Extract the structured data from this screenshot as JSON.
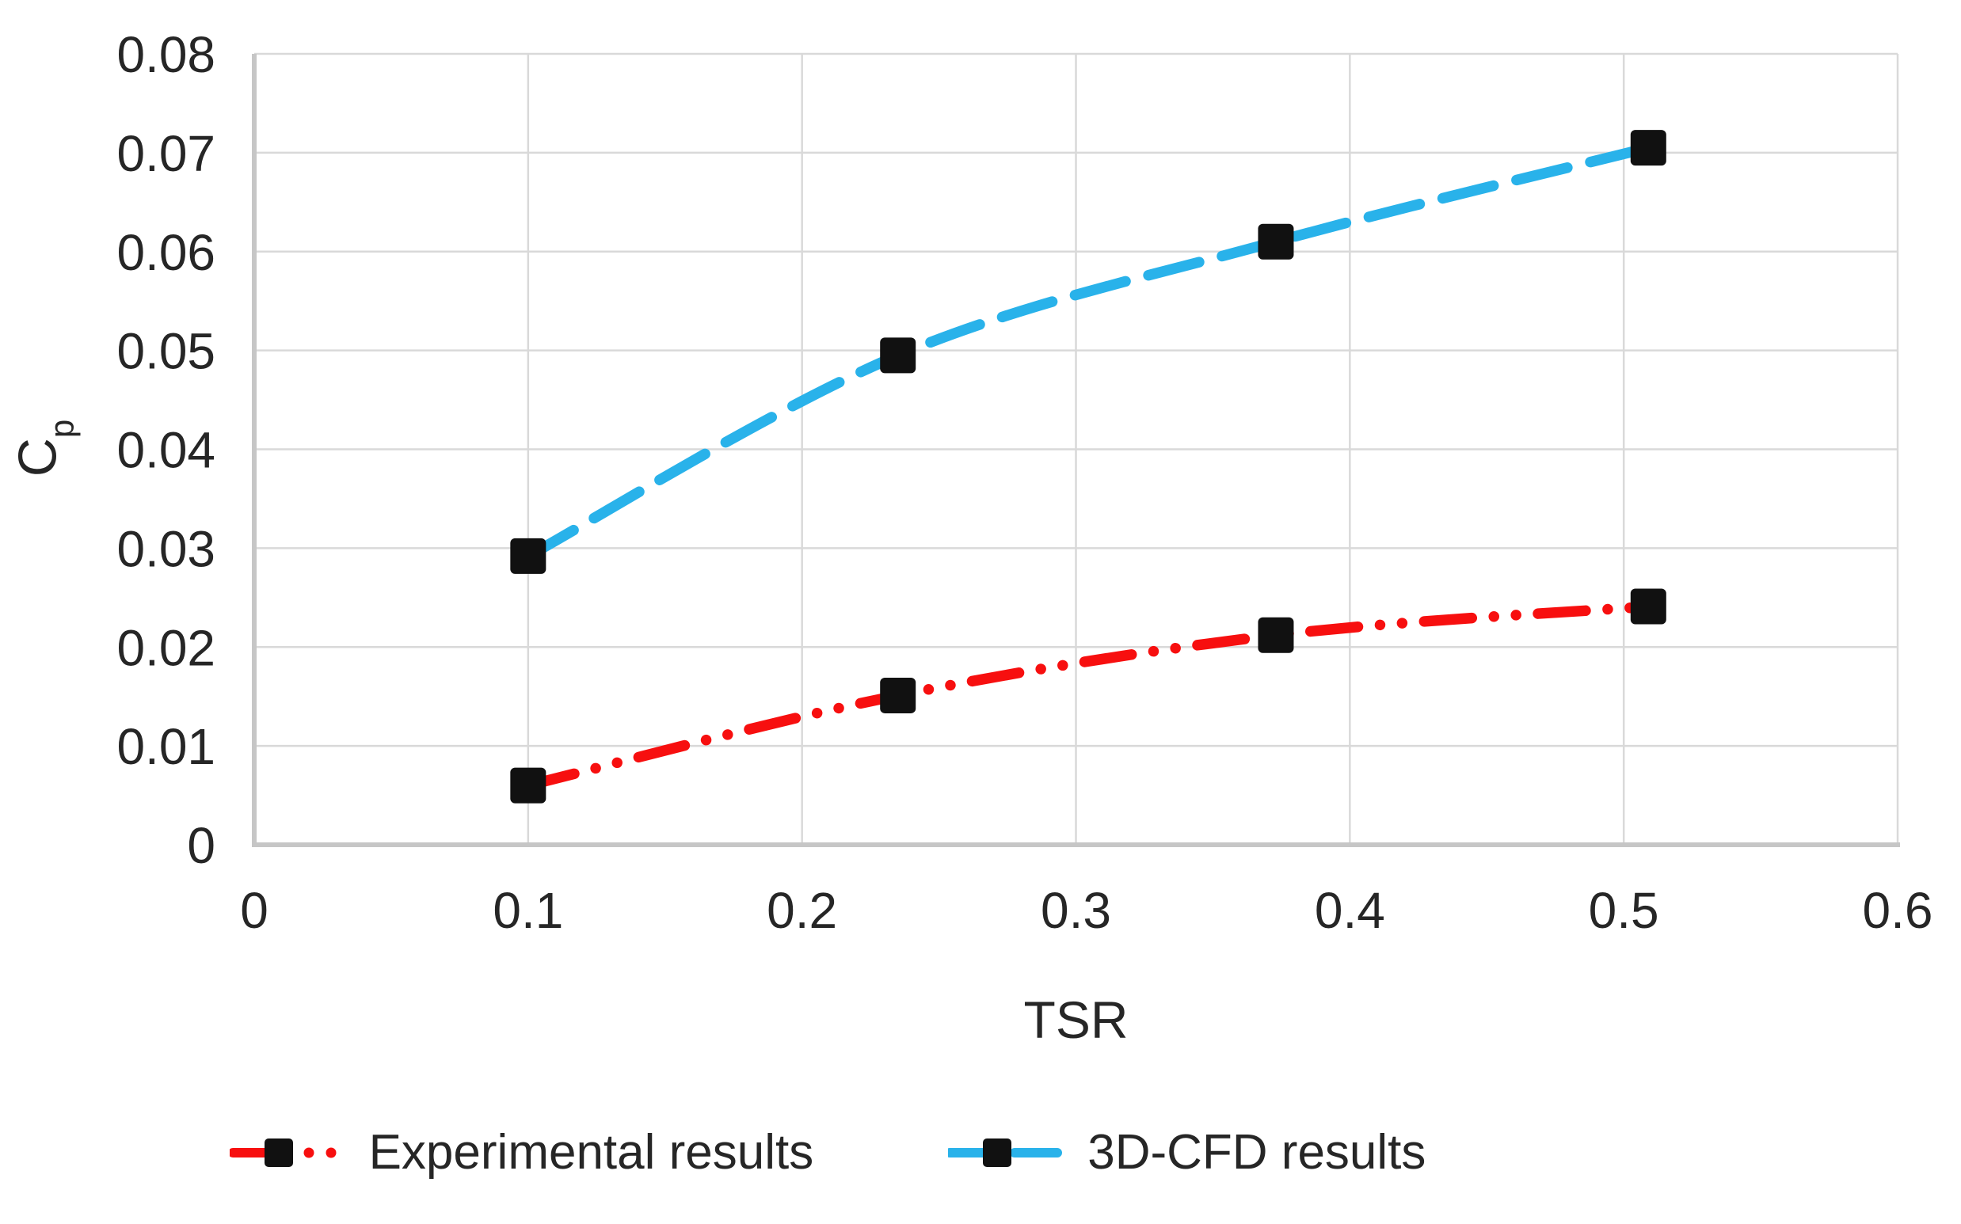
{
  "chart_data": {
    "type": "line",
    "title": "",
    "xlabel": "TSR",
    "ylabel": "Cp",
    "ylabel_main": "C",
    "ylabel_sub": "p",
    "xlim": [
      0,
      0.6
    ],
    "ylim": [
      0,
      0.08
    ],
    "grid": true,
    "legend_position": "bottom",
    "x_ticks": {
      "values": [
        0,
        0.1,
        0.2,
        0.3,
        0.4,
        0.5,
        0.6
      ],
      "labels": [
        "0",
        "0.1",
        "0.2",
        "0.3",
        "0.4",
        "0.5",
        "0.6"
      ]
    },
    "y_ticks": {
      "values": [
        0,
        0.01,
        0.02,
        0.03,
        0.04,
        0.05,
        0.06,
        0.07,
        0.08
      ],
      "labels": [
        "0",
        "0.01",
        "0.02",
        "0.03",
        "0.04",
        "0.05",
        "0.06",
        "0.07",
        "0.08"
      ]
    },
    "series": [
      {
        "name": "Experimental results",
        "color": "#f70f0f",
        "line_style": "dash-dot-dot",
        "marker": "square",
        "marker_color": "#111111",
        "x": [
          0.1,
          0.235,
          0.373,
          0.509
        ],
        "y": [
          0.006,
          0.0151,
          0.0212,
          0.0241
        ]
      },
      {
        "name": "3D-CFD results",
        "color": "#29b2ea",
        "line_style": "dash",
        "marker": "square",
        "marker_color": "#111111",
        "x": [
          0.1,
          0.235,
          0.373,
          0.509
        ],
        "y": [
          0.0292,
          0.0495,
          0.061,
          0.0705
        ]
      }
    ]
  },
  "colors": {
    "background": "#ffffff",
    "text": "#262626",
    "gridline": "#d9d9d9",
    "axis_line": "#c6c6c6",
    "experimental_red": "#f70f0f",
    "cfd_blue": "#29b2ea",
    "marker_black": "#111111"
  }
}
